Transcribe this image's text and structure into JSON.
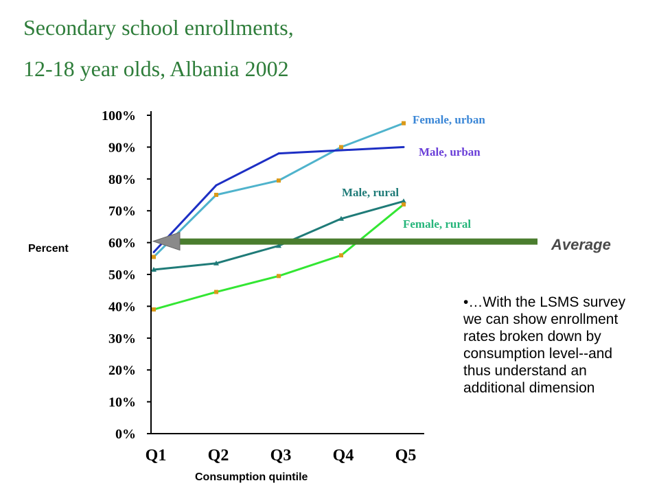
{
  "header": {
    "title_line1": "Secondary school enrollments,",
    "title_line2": "12-18 year olds, Albania 2002"
  },
  "chart_data": {
    "type": "line",
    "categories": [
      "Q1",
      "Q2",
      "Q3",
      "Q4",
      "Q5"
    ],
    "series": [
      {
        "name": "Female, urban",
        "values": [
          55.5,
          75,
          79.5,
          90,
          97.5
        ],
        "color": "#4fb3cc",
        "marker": "square"
      },
      {
        "name": "Male, urban",
        "values": [
          57,
          78,
          88,
          89,
          90
        ],
        "color": "#1d2fc4",
        "marker": "none"
      },
      {
        "name": "Male, rural",
        "values": [
          51.5,
          53.5,
          59,
          67.5,
          73
        ],
        "color": "#1f7b78",
        "marker": "triangle"
      },
      {
        "name": "Female, rural",
        "values": [
          39,
          44.5,
          49.5,
          56,
          72
        ],
        "color": "#33e633",
        "marker": "square"
      }
    ],
    "ylim": [
      0,
      100
    ],
    "yticks": [
      "0%",
      "10%",
      "20%",
      "30%",
      "40%",
      "50%",
      "60%",
      "70%",
      "80%",
      "90%",
      "100%"
    ],
    "ylabel": "Percent",
    "xlabel": "Consumption quintile",
    "grid": false,
    "average": {
      "label": "Average",
      "value": 60,
      "color": "#4a7d2e"
    },
    "series_label_colors": [
      "#3a86d6",
      "#6a3fd8",
      "#1f7b78",
      "#25b57a"
    ]
  },
  "note": "•…With the LSMS survey we can show enrollment rates broken down  by consumption level--and thus understand an additional dimension"
}
